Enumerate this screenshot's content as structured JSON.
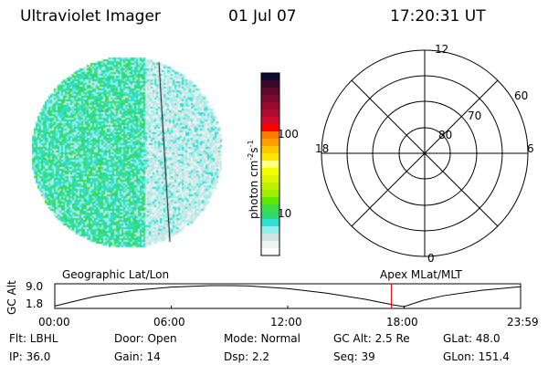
{
  "header": {
    "title": "Ultraviolet Imager",
    "date": "01 Jul 07",
    "time": "17:20:31 UT"
  },
  "colorbar": {
    "label": "photon cm",
    "sup1": "-2",
    "s": "s",
    "sup2": "-1",
    "ticks": [
      "100",
      "10"
    ],
    "colors": [
      "#0a0a33",
      "#3a0a2a",
      "#5a0a2e",
      "#7a0a30",
      "#960a30",
      "#b00a30",
      "#d00a30",
      "#ff0000",
      "#ff7a00",
      "#ffa000",
      "#ffc800",
      "#ffe600",
      "#ffff80",
      "#f5ff00",
      "#e0f500",
      "#c0f000",
      "#a0ee00",
      "#60e800",
      "#40e040",
      "#30d870",
      "#30e0d0",
      "#90f0f0",
      "#d0e4e4",
      "#eaf4f0",
      "#ffffff"
    ]
  },
  "polar": {
    "mlt_labels": [
      "12",
      "18",
      "6",
      "0"
    ],
    "lat_labels": [
      "60",
      "70",
      "80"
    ]
  },
  "chart_data": {
    "type": "line",
    "labels_top": [
      "Geographic Lat/Lon",
      "Apex MLat/MLT"
    ],
    "ylabel": "GC Alt",
    "yticks": [
      "9.0",
      "1.8"
    ],
    "ylim": [
      1.8,
      9.0
    ],
    "xticks": [
      "00:00",
      "06:00",
      "12:00",
      "18:00",
      "23:59"
    ],
    "x_hours": [
      0,
      2,
      4,
      6,
      8,
      9,
      10,
      12,
      14,
      16,
      17.5,
      18,
      19,
      20,
      22,
      23.98
    ],
    "y_re": [
      2.0,
      5.2,
      7.3,
      8.5,
      9.0,
      9.0,
      8.9,
      8.0,
      6.4,
      4.3,
      2.3,
      1.8,
      4.0,
      5.5,
      7.4,
      8.6
    ],
    "marker_time": "17:20:31",
    "marker_hour": 17.34,
    "marker_color": "#ff0000"
  },
  "status": [
    [
      "Flt: LBHL",
      "Door: Open",
      "Mode: Normal",
      "GC Alt: 2.5 Re",
      "GLat:  48.0"
    ],
    [
      "IP: 36.0",
      "Gain: 14",
      "Dsp:    2.2",
      "Seq: 39",
      "GLon: 151.4"
    ]
  ]
}
